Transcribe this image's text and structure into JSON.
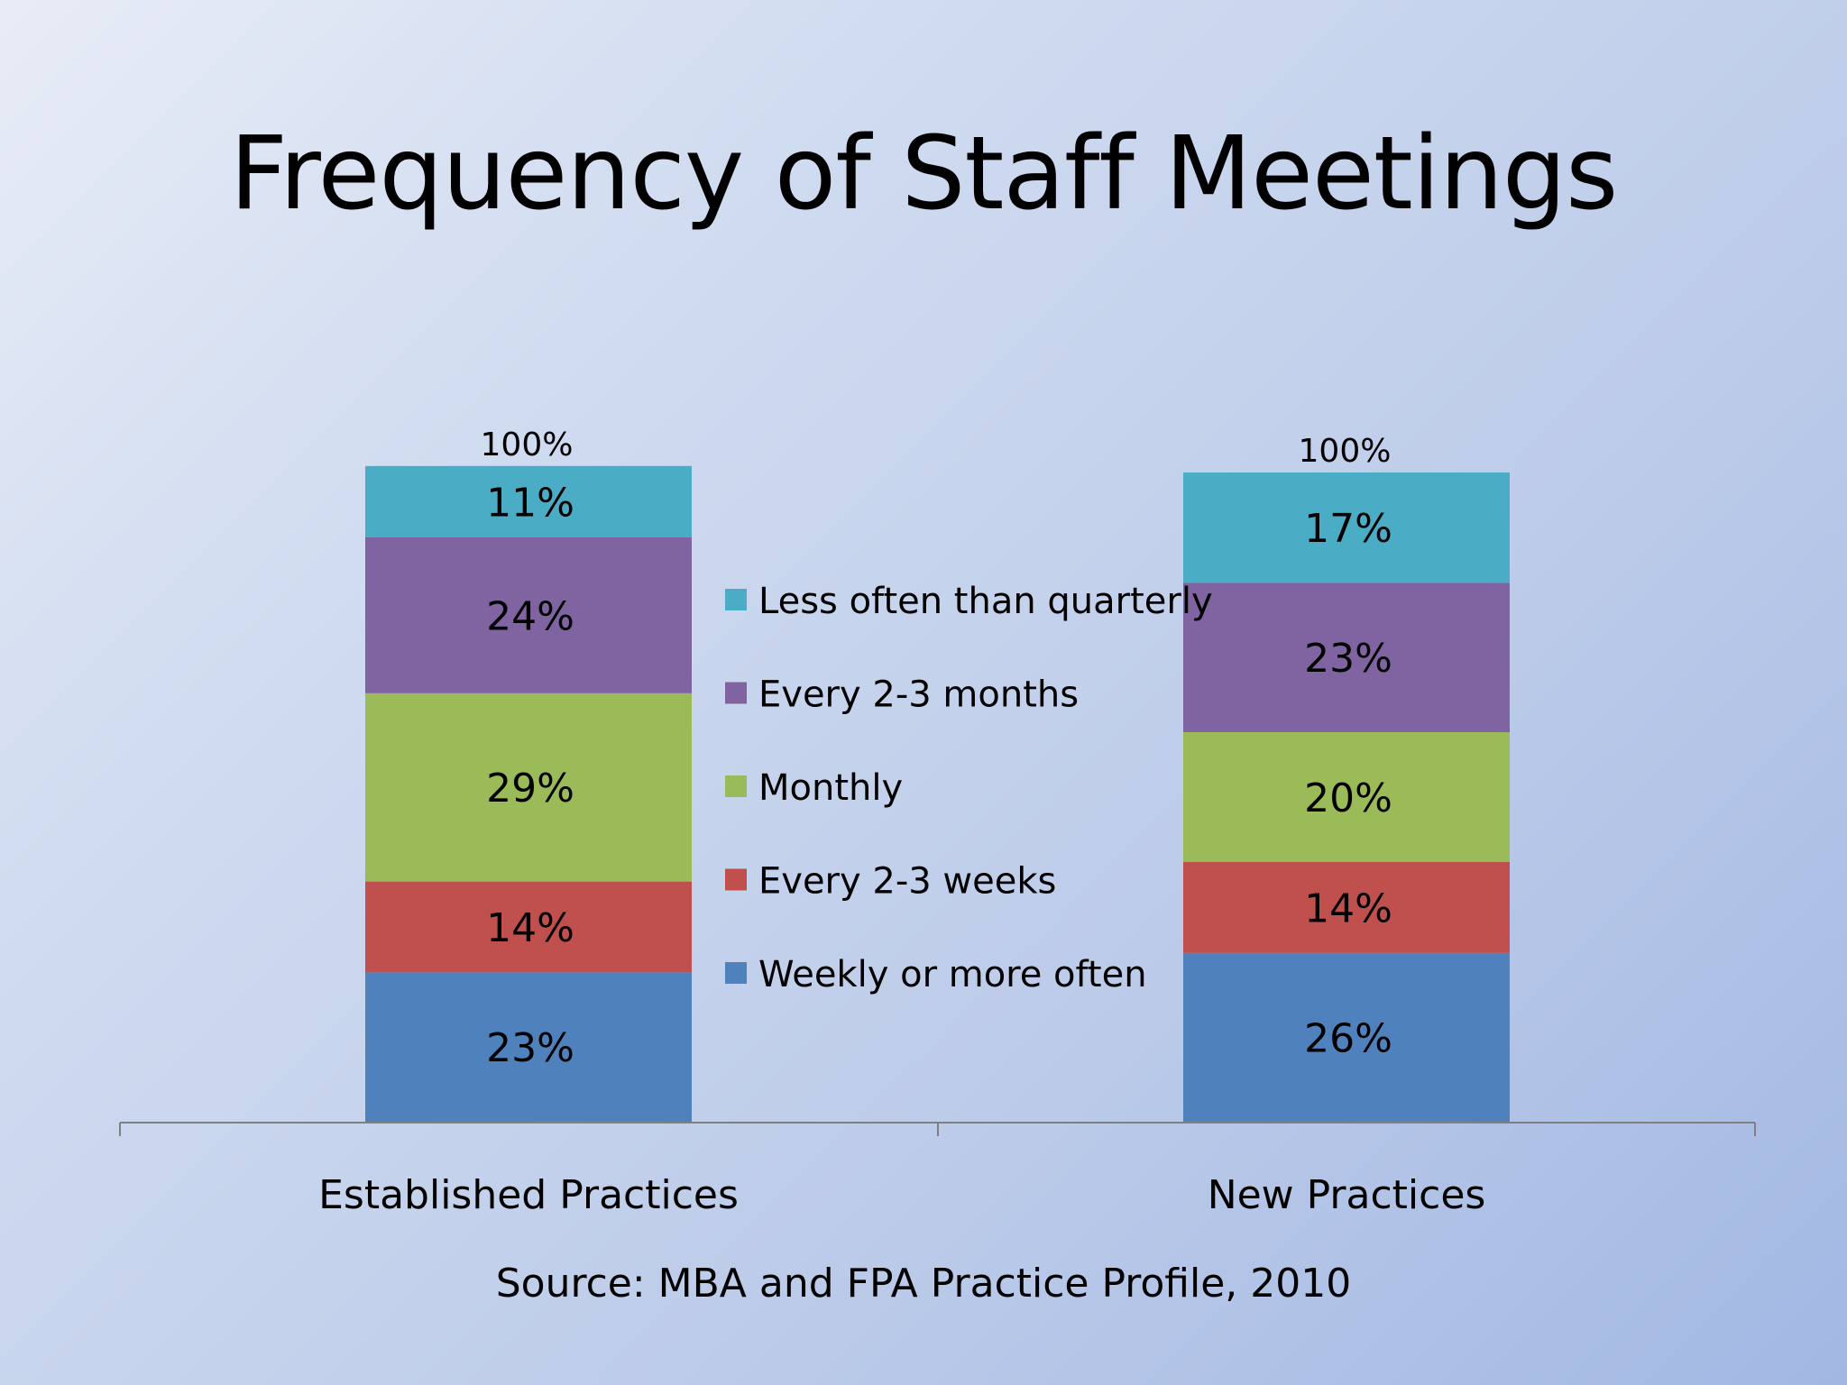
{
  "slide": {
    "title": "Frequency of Staff Meetings",
    "source": "Source: MBA and FPA Practice Profile, 2010"
  },
  "chart_data": {
    "type": "bar",
    "stacked": true,
    "categories": [
      "Established Practices",
      "New Practices"
    ],
    "totals": [
      "100%",
      "100%"
    ],
    "series": [
      {
        "name": "Weekly or more often",
        "values": [
          23,
          26
        ],
        "labels": [
          "23%",
          "26%"
        ],
        "color": "#4f81bd"
      },
      {
        "name": "Every 2-3 weeks",
        "values": [
          14,
          14
        ],
        "labels": [
          "14%",
          "14%"
        ],
        "color": "#c0504d"
      },
      {
        "name": "Monthly",
        "values": [
          29,
          20
        ],
        "labels": [
          "29%",
          "20%"
        ],
        "color": "#9bbb59"
      },
      {
        "name": "Every 2-3 months",
        "values": [
          24,
          23
        ],
        "labels": [
          "24%",
          "23%"
        ],
        "color": "#8064a2"
      },
      {
        "name": "Less often than quarterly",
        "values": [
          11,
          17
        ],
        "labels": [
          "11%",
          "17%"
        ],
        "color": "#4bacc6"
      }
    ],
    "legend_order": [
      "Less often than quarterly",
      "Every 2-3 months",
      "Monthly",
      "Every 2-3 weeks",
      "Weekly or more often"
    ],
    "legend_position": "center",
    "ylim": [
      0,
      100
    ],
    "gridlines": false,
    "axis_color": "#808080"
  }
}
